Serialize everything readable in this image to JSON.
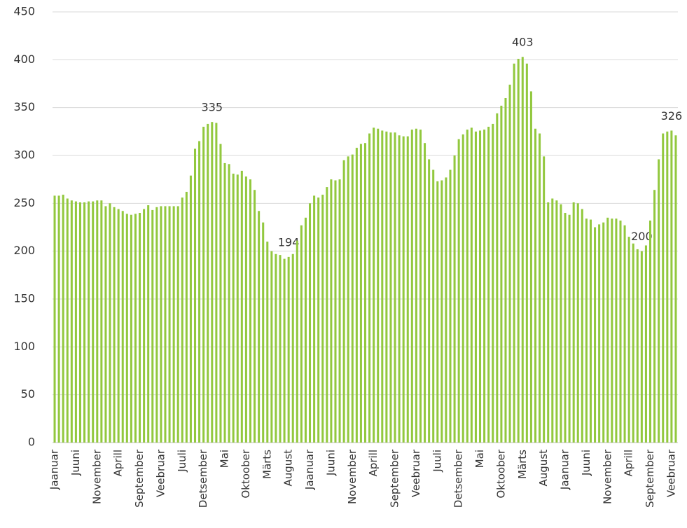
{
  "chart_data": {
    "type": "bar",
    "color": "#92c83e",
    "grid": true,
    "ylim": [
      0,
      450
    ],
    "yticks": [
      0,
      50,
      100,
      150,
      200,
      250,
      300,
      350,
      400,
      450
    ],
    "categories": [
      "Jaanuar",
      null,
      null,
      null,
      null,
      "Juuni",
      null,
      null,
      null,
      null,
      "November",
      null,
      null,
      null,
      null,
      "Aprill",
      null,
      null,
      null,
      null,
      "September",
      null,
      null,
      null,
      null,
      "Veebruar",
      null,
      null,
      null,
      null,
      "Juuli",
      null,
      null,
      null,
      null,
      "Detsember",
      null,
      null,
      null,
      null,
      "Mai",
      null,
      null,
      null,
      null,
      "Oktoober",
      null,
      null,
      null,
      null,
      "Märts",
      null,
      null,
      null,
      null,
      "August",
      null,
      null,
      null,
      null,
      "Jaanuar",
      null,
      null,
      null,
      null,
      "Juuni",
      null,
      null,
      null,
      null,
      "November",
      null,
      null,
      null,
      null,
      "Aprill",
      null,
      null,
      null,
      null,
      "September",
      null,
      null,
      null,
      null,
      "Veebruar",
      null,
      null,
      null,
      null,
      "Juuli",
      null,
      null,
      null,
      null,
      "Detsember",
      null,
      null,
      null,
      null,
      "Mai",
      null,
      null,
      null,
      null,
      "Oktoober",
      null,
      null,
      null,
      null,
      "Märts",
      null,
      null,
      null,
      null,
      "August",
      null,
      null,
      null,
      null,
      "Jaanuar",
      null,
      null,
      null,
      null,
      "Juuni",
      null,
      null,
      null,
      null,
      "November",
      null,
      null,
      null,
      null,
      "Aprill",
      null,
      null,
      null,
      null,
      "September",
      null,
      null,
      null,
      null,
      "Veebruar",
      null
    ],
    "values": [
      258,
      258,
      259,
      255,
      253,
      252,
      251,
      251,
      252,
      252,
      253,
      253,
      247,
      250,
      246,
      244,
      242,
      239,
      238,
      239,
      240,
      244,
      248,
      243,
      246,
      247,
      247,
      247,
      247,
      247,
      256,
      262,
      279,
      307,
      315,
      330,
      333,
      335,
      334,
      312,
      292,
      291,
      281,
      280,
      284,
      278,
      275,
      264,
      242,
      230,
      210,
      200,
      197,
      196,
      192,
      194,
      197,
      211,
      227,
      235,
      250,
      258,
      256,
      259,
      267,
      275,
      274,
      275,
      295,
      299,
      301,
      308,
      312,
      313,
      323,
      329,
      328,
      326,
      325,
      324,
      324,
      321,
      320,
      320,
      327,
      328,
      327,
      313,
      296,
      285,
      273,
      274,
      277,
      285,
      300,
      317,
      322,
      327,
      329,
      325,
      326,
      327,
      330,
      333,
      344,
      352,
      360,
      374,
      396,
      401,
      403,
      396,
      367,
      328,
      323,
      299,
      251,
      255,
      253,
      249,
      240,
      238,
      251,
      250,
      244,
      234,
      233,
      225,
      228,
      230,
      235,
      234,
      234,
      232,
      227,
      215,
      208,
      202,
      200,
      206,
      232,
      264,
      296,
      323,
      325,
      326,
      321
    ],
    "value_labels": [
      null,
      null,
      null,
      null,
      null,
      null,
      null,
      null,
      null,
      null,
      null,
      null,
      null,
      null,
      null,
      null,
      null,
      null,
      null,
      null,
      null,
      null,
      null,
      null,
      null,
      null,
      null,
      null,
      null,
      null,
      null,
      null,
      null,
      null,
      null,
      null,
      null,
      "335",
      null,
      null,
      null,
      null,
      null,
      null,
      null,
      null,
      null,
      null,
      null,
      null,
      null,
      null,
      null,
      null,
      null,
      "194",
      null,
      null,
      null,
      null,
      null,
      null,
      null,
      null,
      null,
      null,
      null,
      null,
      null,
      null,
      null,
      null,
      null,
      null,
      null,
      null,
      null,
      null,
      null,
      null,
      null,
      null,
      null,
      null,
      null,
      null,
      null,
      null,
      null,
      null,
      null,
      null,
      null,
      null,
      null,
      null,
      null,
      null,
      null,
      null,
      null,
      null,
      null,
      null,
      null,
      null,
      null,
      null,
      null,
      null,
      "403",
      null,
      null,
      null,
      null,
      null,
      null,
      null,
      null,
      null,
      null,
      null,
      null,
      null,
      null,
      null,
      null,
      null,
      null,
      null,
      null,
      null,
      null,
      null,
      null,
      null,
      null,
      null,
      "200",
      null,
      null,
      null,
      null,
      null,
      null,
      "326",
      null
    ]
  }
}
